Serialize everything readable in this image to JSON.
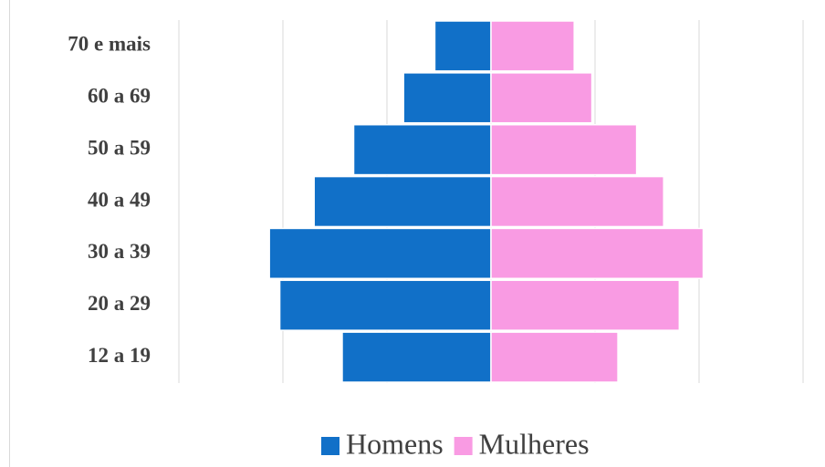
{
  "chart_data": {
    "type": "pyramid",
    "categories": [
      "70 e mais",
      "60 a 69",
      "50 a 59",
      "40 a 49",
      "30 a 39",
      "20 a 29",
      "12 a 19"
    ],
    "series": [
      {
        "name": "Homens",
        "color": "#1170c8",
        "values": [
          -0.54,
          -0.84,
          -1.32,
          -1.7,
          -2.13,
          -2.03,
          -1.43
        ]
      },
      {
        "name": "Mulheres",
        "color": "#f99be3",
        "values": [
          0.8,
          0.97,
          1.4,
          1.66,
          2.04,
          1.81,
          1.22
        ]
      }
    ],
    "xlim": [
      -3,
      3
    ],
    "xticks": [
      -3,
      -2,
      -1,
      0,
      1,
      2,
      3
    ],
    "grid": true,
    "legend": "bottom"
  }
}
